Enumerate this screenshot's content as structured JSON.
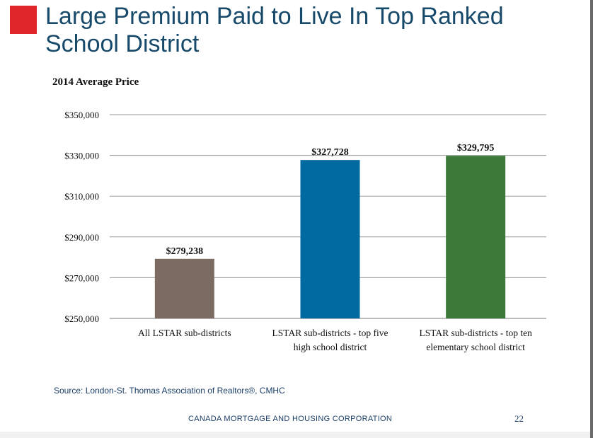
{
  "slide": {
    "title": "Large Premium Paid to Live In Top Ranked School District",
    "source": "Source:  London-St. Thomas Association of Realtors®, CMHC",
    "footer": "CANADA MORTGAGE AND HOUSING CORPORATION",
    "page_number": "22"
  },
  "colors": {
    "accent_square": "#e0262b",
    "title": "#17496a"
  },
  "chart_data": {
    "type": "bar",
    "title": "2014 Average Price",
    "categories": [
      [
        "All LSTAR sub-districts"
      ],
      [
        "LSTAR sub-districts - top five",
        "high school district"
      ],
      [
        "LSTAR sub-districts - top ten",
        "elementary school district"
      ]
    ],
    "values": [
      279238,
      327728,
      329795
    ],
    "data_labels": [
      "$279,238",
      "$327,728",
      "$329,795"
    ],
    "colors": [
      "#7b6b62",
      "#006aa0",
      "#3d7a3a"
    ],
    "ylim": [
      250000,
      350000
    ],
    "yticks": [
      250000,
      270000,
      290000,
      310000,
      330000,
      350000
    ],
    "ytick_labels": [
      "$250,000",
      "$270,000",
      "$290,000",
      "$310,000",
      "$330,000",
      "$350,000"
    ],
    "grid": true,
    "legend": "none"
  }
}
